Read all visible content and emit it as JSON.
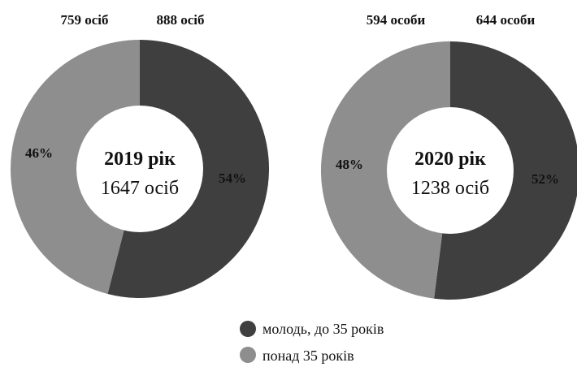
{
  "colors": {
    "youth": "#3f3f3f",
    "over35": "#8e8e8e",
    "hole": "#ffffff",
    "text": "#111111"
  },
  "legend": [
    {
      "label": "молодь, до 35 років",
      "color": "#3f3f3f"
    },
    {
      "label": "понад 35 років",
      "color": "#8e8e8e"
    }
  ],
  "chart_data": [
    {
      "type": "pie",
      "title": "2019 рік",
      "total": "1647 осіб",
      "slices": [
        {
          "name": "молодь, до 35 років",
          "value": 54,
          "label": "54%",
          "count": "888 осіб"
        },
        {
          "name": "понад 35 років",
          "value": 46,
          "label": "46%",
          "count": "759 осіб"
        }
      ]
    },
    {
      "type": "pie",
      "title": "2020 рік",
      "total": "1238 осіб",
      "slices": [
        {
          "name": "молодь, до 35 років",
          "value": 52,
          "label": "52%",
          "count": "644 особи"
        },
        {
          "name": "понад 35 років",
          "value": 48,
          "label": "48%",
          "count": "594 особи"
        }
      ]
    }
  ]
}
